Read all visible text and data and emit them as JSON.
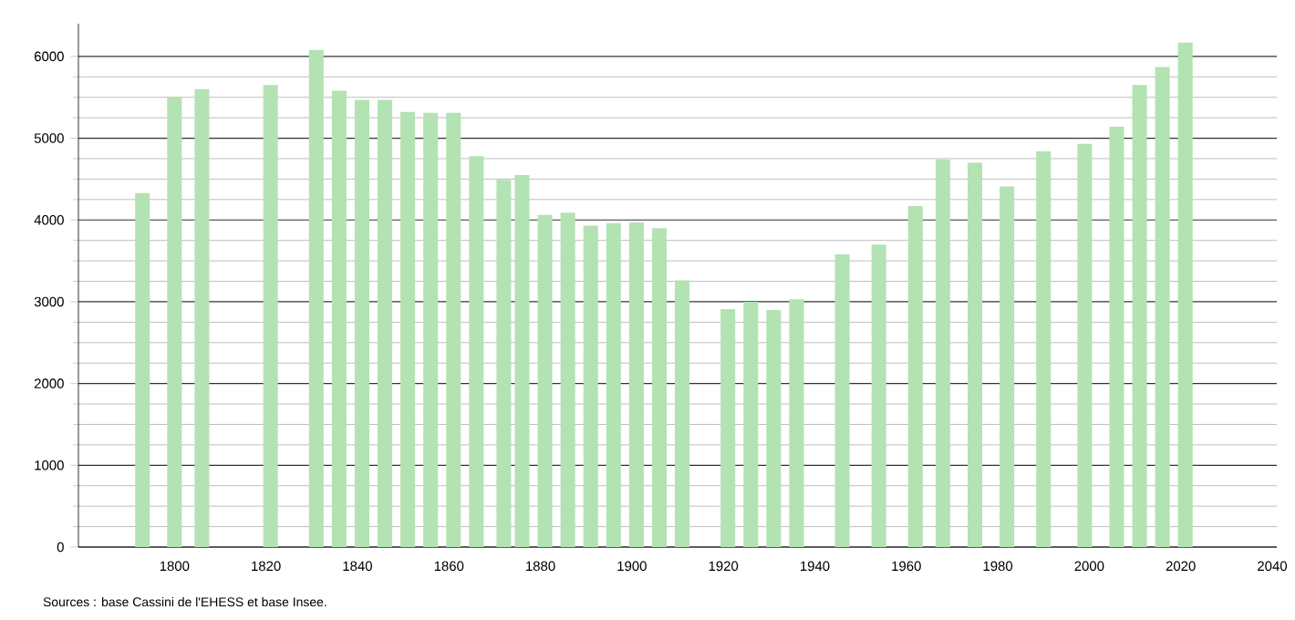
{
  "chart_data": {
    "type": "bar",
    "color": "#b3e2b3",
    "x": [
      1793,
      1800,
      1806,
      1821,
      1831,
      1836,
      1841,
      1846,
      1851,
      1856,
      1861,
      1866,
      1872,
      1876,
      1881,
      1886,
      1891,
      1896,
      1901,
      1906,
      1911,
      1921,
      1926,
      1931,
      1936,
      1946,
      1954,
      1962,
      1968,
      1975,
      1982,
      1990,
      1999,
      2006,
      2011,
      2016,
      2021
    ],
    "values": [
      4330,
      5500,
      5600,
      5650,
      6080,
      5580,
      5470,
      5470,
      5320,
      5310,
      5310,
      4780,
      4490,
      4550,
      4060,
      4090,
      3930,
      3960,
      3970,
      3900,
      3260,
      2910,
      3000,
      2900,
      3030,
      3580,
      3700,
      4170,
      4740,
      4700,
      4410,
      4840,
      4930,
      5140,
      5650,
      5870,
      6170
    ],
    "xlim": [
      1779,
      2041
    ],
    "xticks": [
      1800,
      1820,
      1840,
      1860,
      1880,
      1900,
      1920,
      1940,
      1960,
      1980,
      2000,
      2020,
      2040
    ],
    "ylim": [
      0,
      6400
    ],
    "yticks": [
      0,
      1000,
      2000,
      3000,
      4000,
      5000,
      6000
    ],
    "grid": "y",
    "annotations": [
      "Sources : base Cassini de l'EHESS et base Insee."
    ]
  }
}
